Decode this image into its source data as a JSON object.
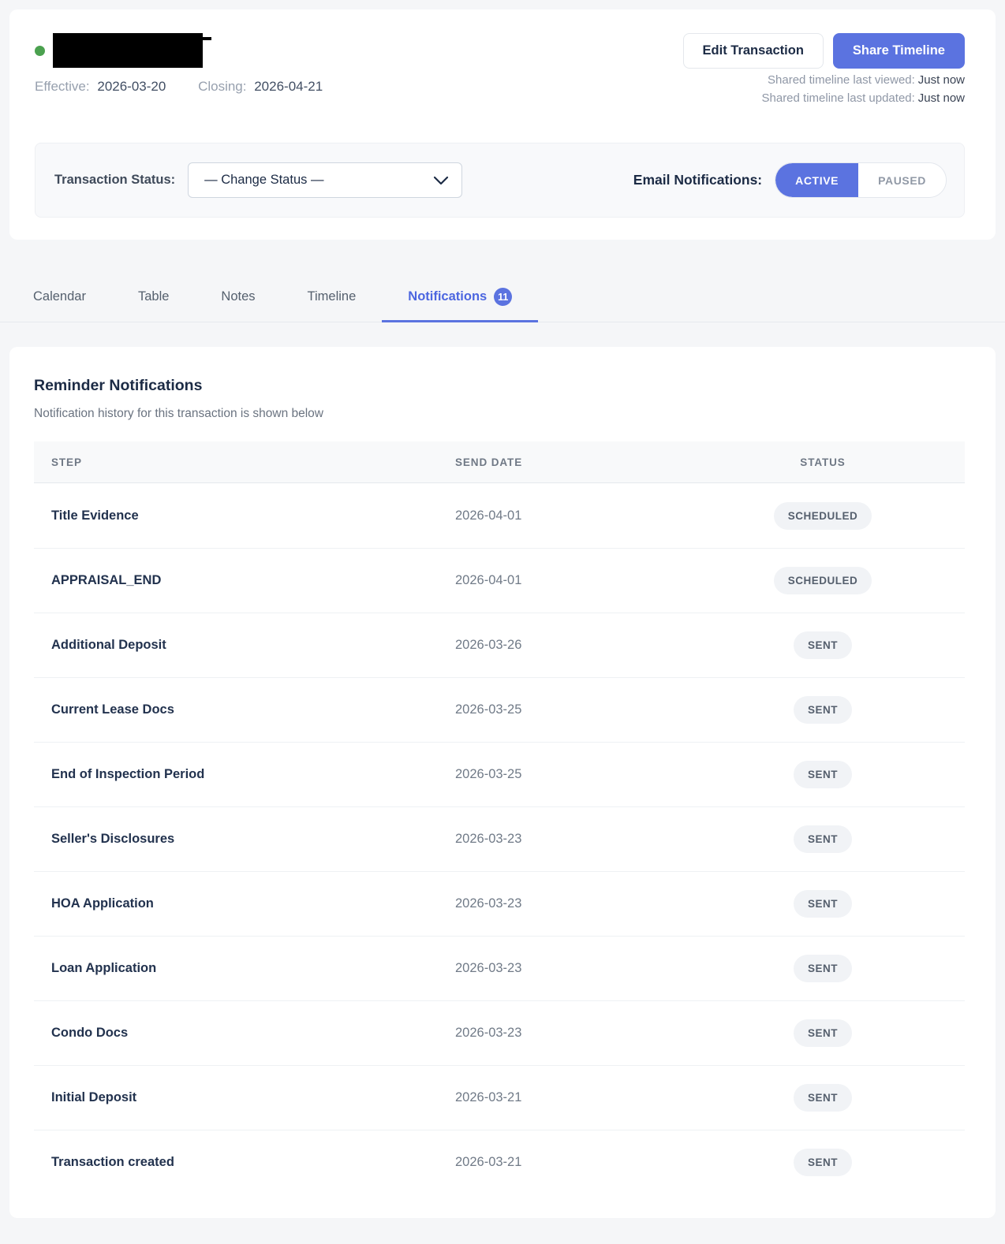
{
  "header": {
    "title_redacted": true,
    "effective_label": "Effective:",
    "effective_date": "2026-03-20",
    "closing_label": "Closing:",
    "closing_date": "2026-04-21",
    "edit_button": "Edit Transaction",
    "share_button": "Share Timeline",
    "last_viewed_label": "Shared timeline last viewed:",
    "last_viewed_value": "Just now",
    "last_updated_label": "Shared timeline last updated:",
    "last_updated_value": "Just now"
  },
  "status_bar": {
    "label": "Transaction Status:",
    "select_value": "— Change Status —",
    "email_label": "Email Notifications:",
    "active_label": "ACTIVE",
    "paused_label": "PAUSED"
  },
  "tabs": [
    {
      "label": "Calendar",
      "active": false
    },
    {
      "label": "Table",
      "active": false
    },
    {
      "label": "Notes",
      "active": false
    },
    {
      "label": "Timeline",
      "active": false
    },
    {
      "label": "Notifications",
      "active": true,
      "badge": "11"
    }
  ],
  "notifications": {
    "title": "Reminder Notifications",
    "subtitle": "Notification history for this transaction is shown below",
    "columns": [
      "STEP",
      "SEND DATE",
      "STATUS"
    ],
    "rows": [
      {
        "step": "Title Evidence",
        "date": "2026-04-01",
        "status": "SCHEDULED"
      },
      {
        "step": "APPRAISAL_END",
        "date": "2026-04-01",
        "status": "SCHEDULED"
      },
      {
        "step": "Additional Deposit",
        "date": "2026-03-26",
        "status": "SENT"
      },
      {
        "step": "Current Lease Docs",
        "date": "2026-03-25",
        "status": "SENT"
      },
      {
        "step": "End of Inspection Period",
        "date": "2026-03-25",
        "status": "SENT"
      },
      {
        "step": "Seller's Disclosures",
        "date": "2026-03-23",
        "status": "SENT"
      },
      {
        "step": "HOA Application",
        "date": "2026-03-23",
        "status": "SENT"
      },
      {
        "step": "Loan Application",
        "date": "2026-03-23",
        "status": "SENT"
      },
      {
        "step": "Condo Docs",
        "date": "2026-03-23",
        "status": "SENT"
      },
      {
        "step": "Initial Deposit",
        "date": "2026-03-21",
        "status": "SENT"
      },
      {
        "step": "Transaction created",
        "date": "2026-03-21",
        "status": "SENT"
      }
    ]
  },
  "colors": {
    "accent": "#5b73e0",
    "status_dot": "#4ba14f",
    "page_background": "#f5f6f8",
    "badge_background": "#f1f3f6"
  }
}
